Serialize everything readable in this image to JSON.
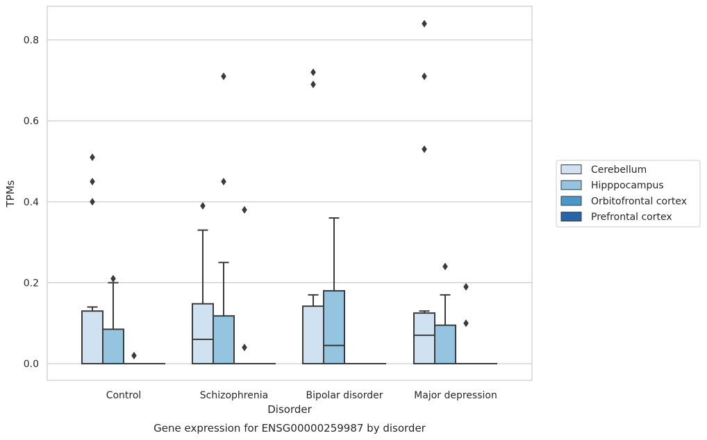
{
  "chart_data": {
    "type": "box",
    "xlabel": "Disorder",
    "ylabel": "TPMs",
    "caption": "Gene expression for ENSG00000259987 by disorder",
    "ylim": [
      -0.04,
      0.885
    ],
    "yticks": [
      0.0,
      0.2,
      0.4,
      0.6,
      0.8
    ],
    "ytick_labels": [
      "0.0",
      "0.2",
      "0.4",
      "0.6",
      "0.8"
    ],
    "grid": "horizontal",
    "legend_position": "right",
    "categories": [
      "Control",
      "Schizophrenia",
      "Bipolar disorder",
      "Major depression"
    ],
    "series": [
      {
        "name": "Cerebellum",
        "color": "#d0e1f2",
        "boxes": [
          {
            "category": "Control",
            "q1": 0.0,
            "median": 0.0,
            "q3": 0.13,
            "whisker_low": 0.0,
            "whisker_high": 0.14,
            "outliers": [
              0.4,
              0.45,
              0.51
            ]
          },
          {
            "category": "Schizophrenia",
            "q1": 0.0,
            "median": 0.06,
            "q3": 0.148,
            "whisker_low": 0.0,
            "whisker_high": 0.33,
            "outliers": [
              0.39
            ]
          },
          {
            "category": "Bipolar disorder",
            "q1": 0.0,
            "median": 0.0,
            "q3": 0.142,
            "whisker_low": 0.0,
            "whisker_high": 0.17,
            "outliers": [
              0.69,
              0.72
            ]
          },
          {
            "category": "Major depression",
            "q1": 0.0,
            "median": 0.07,
            "q3": 0.125,
            "whisker_low": 0.0,
            "whisker_high": 0.13,
            "outliers": [
              0.53,
              0.71,
              0.84
            ]
          }
        ]
      },
      {
        "name": "Hipppocampus",
        "color": "#94c4df",
        "boxes": [
          {
            "category": "Control",
            "q1": 0.0,
            "median": 0.0,
            "q3": 0.085,
            "whisker_low": 0.0,
            "whisker_high": 0.2,
            "outliers": [
              0.21
            ]
          },
          {
            "category": "Schizophrenia",
            "q1": 0.0,
            "median": 0.0,
            "q3": 0.118,
            "whisker_low": 0.0,
            "whisker_high": 0.25,
            "outliers": [
              0.45,
              0.71
            ]
          },
          {
            "category": "Bipolar disorder",
            "q1": 0.0,
            "median": 0.045,
            "q3": 0.18,
            "whisker_low": 0.0,
            "whisker_high": 0.36,
            "outliers": []
          },
          {
            "category": "Major depression",
            "q1": 0.0,
            "median": 0.0,
            "q3": 0.095,
            "whisker_low": 0.0,
            "whisker_high": 0.17,
            "outliers": [
              0.24
            ]
          }
        ]
      },
      {
        "name": "Orbitofrontal cortex",
        "color": "#4a98c9",
        "boxes": [
          {
            "category": "Control",
            "q1": 0.0,
            "median": 0.0,
            "q3": 0.0,
            "whisker_low": 0.0,
            "whisker_high": 0.0,
            "outliers": [
              0.02
            ]
          },
          {
            "category": "Schizophrenia",
            "q1": 0.0,
            "median": 0.0,
            "q3": 0.0,
            "whisker_low": 0.0,
            "whisker_high": 0.0,
            "outliers": [
              0.04,
              0.38
            ]
          },
          {
            "category": "Bipolar disorder",
            "q1": 0.0,
            "median": 0.0,
            "q3": 0.0,
            "whisker_low": 0.0,
            "whisker_high": 0.0,
            "outliers": []
          },
          {
            "category": "Major depression",
            "q1": 0.0,
            "median": 0.0,
            "q3": 0.0,
            "whisker_low": 0.0,
            "whisker_high": 0.0,
            "outliers": [
              0.1,
              0.19
            ]
          }
        ]
      },
      {
        "name": "Prefrontal cortex",
        "color": "#2666a8",
        "boxes": [
          {
            "category": "Control",
            "q1": 0.0,
            "median": 0.0,
            "q3": 0.0,
            "whisker_low": 0.0,
            "whisker_high": 0.0,
            "outliers": []
          },
          {
            "category": "Schizophrenia",
            "q1": 0.0,
            "median": 0.0,
            "q3": 0.0,
            "whisker_low": 0.0,
            "whisker_high": 0.0,
            "outliers": []
          },
          {
            "category": "Bipolar disorder",
            "q1": 0.0,
            "median": 0.0,
            "q3": 0.0,
            "whisker_low": 0.0,
            "whisker_high": 0.0,
            "outliers": []
          },
          {
            "category": "Major depression",
            "q1": 0.0,
            "median": 0.0,
            "q3": 0.0,
            "whisker_low": 0.0,
            "whisker_high": 0.0,
            "outliers": []
          }
        ]
      }
    ]
  }
}
